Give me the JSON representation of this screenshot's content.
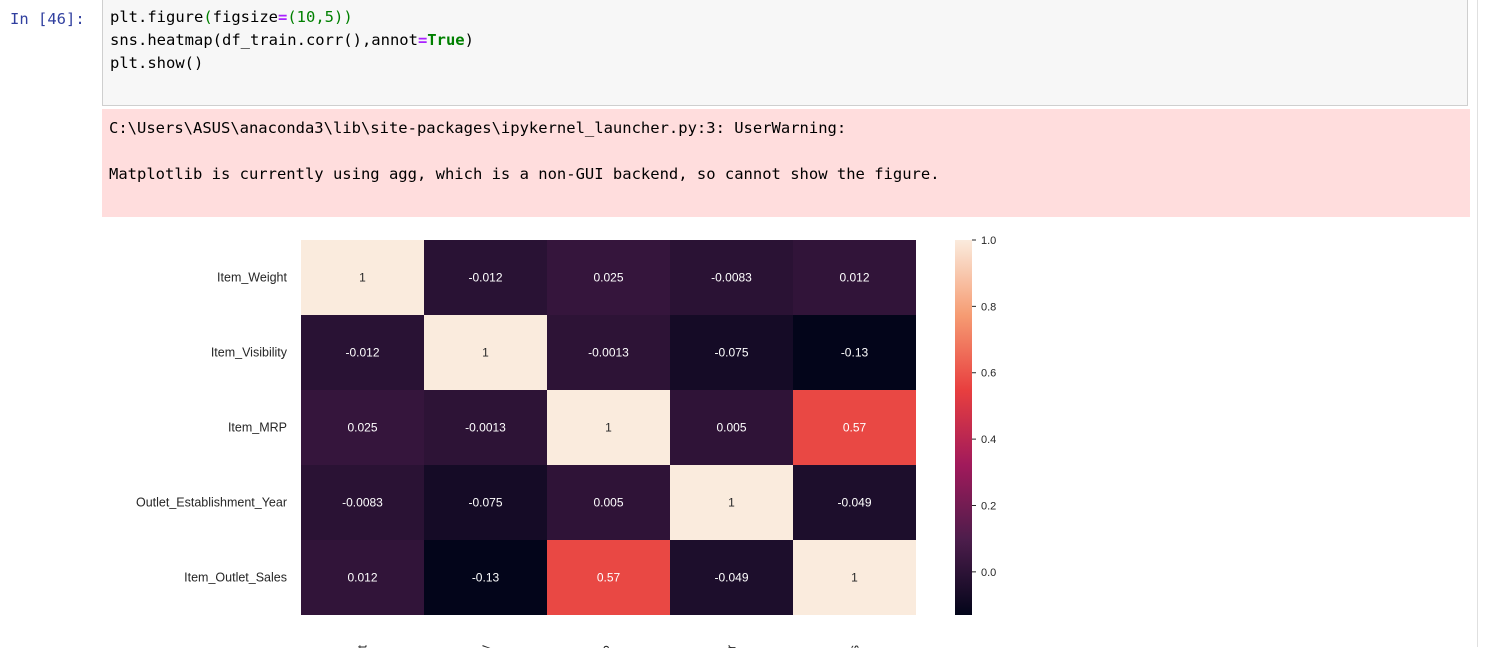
{
  "cell": {
    "prompt": "In [46]:",
    "code": {
      "line1": {
        "a": "plt.figure",
        "b": "(",
        "c": "figsize",
        "d": "=",
        "e": "(10,5))"
      },
      "line2": {
        "a": "sns.heatmap(df_train.corr(),annot",
        "b": "=",
        "c": "True",
        "d": ")"
      },
      "line3": "plt.show()"
    },
    "stderr": {
      "line1": "C:\\Users\\ASUS\\anaconda3\\lib\\site-packages\\ipykernel_launcher.py:3: UserWarning:",
      "line2": "Matplotlib is currently using agg, which is a non-GUI backend, so cannot show the figure."
    }
  },
  "chart_data": {
    "type": "heatmap",
    "rows": [
      "Item_Weight",
      "Item_Visibility",
      "Item_MRP",
      "Outlet_Establishment_Year",
      "Item_Outlet_Sales"
    ],
    "col_labels_visible": [
      "ght",
      "ility",
      "RP",
      "ear",
      "es"
    ],
    "values": [
      [
        1,
        -0.012,
        0.025,
        -0.0083,
        0.012
      ],
      [
        -0.012,
        1,
        -0.0013,
        -0.075,
        -0.13
      ],
      [
        0.025,
        -0.0013,
        1,
        0.005,
        0.57
      ],
      [
        -0.0083,
        -0.075,
        0.005,
        1,
        -0.049
      ],
      [
        0.012,
        -0.13,
        0.57,
        -0.049,
        1
      ]
    ],
    "annotations": [
      [
        "1",
        "-0.012",
        "0.025",
        "-0.0083",
        "0.012"
      ],
      [
        "-0.012",
        "1",
        "-0.0013",
        "-0.075",
        "-0.13"
      ],
      [
        "0.025",
        "-0.0013",
        "1",
        "0.005",
        "0.57"
      ],
      [
        "-0.0083",
        "-0.075",
        "0.005",
        "1",
        "-0.049"
      ],
      [
        "0.012",
        "-0.13",
        "0.57",
        "-0.049",
        "1"
      ]
    ],
    "colorbar": {
      "vmin": -0.13,
      "vmax": 1.0,
      "ticks": [
        "1.0",
        "0.8",
        "0.6",
        "0.4",
        "0.2",
        "0.0"
      ],
      "tick_values": [
        1.0,
        0.8,
        0.6,
        0.4,
        0.2,
        0.0
      ]
    },
    "colormap": "rocket",
    "colormap_stops": [
      "#03051a",
      "#4c1d4b",
      "#a11a5b",
      "#e83f3f",
      "#f69c73",
      "#faebdd"
    ]
  }
}
